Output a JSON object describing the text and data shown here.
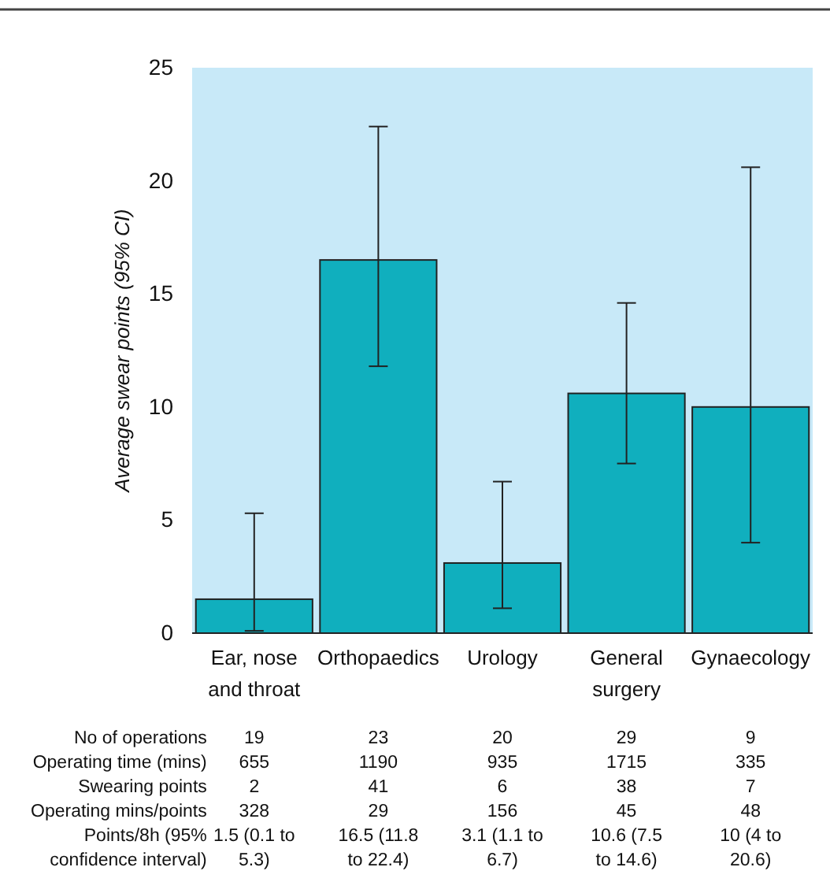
{
  "chart_data": {
    "type": "bar",
    "ylabel": "Average swear points (95% CI)",
    "categories": [
      "Ear, nose and throat",
      "Orthopaedics",
      "Urology",
      "General surgery",
      "Gynaecology"
    ],
    "values": [
      1.5,
      16.5,
      3.1,
      10.6,
      10
    ],
    "errors": [
      [
        0.1,
        5.3
      ],
      [
        11.8,
        22.4
      ],
      [
        1.1,
        6.7
      ],
      [
        7.5,
        14.6
      ],
      [
        4,
        20.6
      ]
    ],
    "color": "#00a9b8",
    "ylim": [
      0,
      25
    ],
    "yticks": [
      0,
      5,
      10,
      15,
      20,
      25
    ],
    "grid": false,
    "value_labels": [
      "1.5 (0.1 to 5.3)",
      "16.5 (11.8 to 22.4)",
      "3.1 (1.1 to 6.7)",
      "10.6 (7.5 to 14.6)",
      "10 (4 to 20.6)"
    ],
    "annotations": [
      "No of operations",
      "19",
      "23",
      "20",
      "29",
      "9",
      "Operating time (mins)",
      "655",
      "1190",
      "935",
      "1715",
      "335",
      "Swearing points",
      "2",
      "41",
      "6",
      "38",
      "7",
      "Operating mins/points",
      "328",
      "29",
      "156",
      "45",
      "48",
      "Points/8h (95% confidence interval)"
    ]
  }
}
